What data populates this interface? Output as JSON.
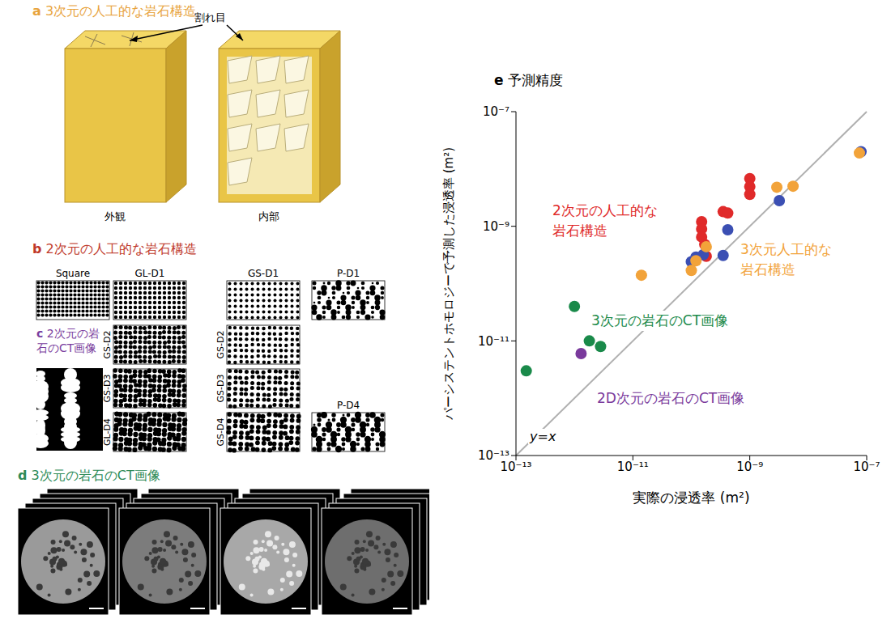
{
  "panels": {
    "a": {
      "letter": "a",
      "title": "3次元の人工的な岩石構造",
      "annotation": "割れ目",
      "labels": [
        "外観",
        "内部"
      ]
    },
    "b": {
      "letter": "b",
      "title": "2次元の人工的な岩石構造",
      "images": [
        "Square",
        "GL-D1",
        "GS-D1",
        "P-D1",
        "GS-D2",
        "GS-D3",
        "GL-D4",
        "GS-D2",
        "GS-D3",
        "GS-D4",
        "P-D4"
      ]
    },
    "c": {
      "letter": "c",
      "title": "2次元の岩石のCT画像"
    },
    "d": {
      "letter": "d",
      "title": "3次元の岩石のCT画像"
    }
  },
  "chart_data": {
    "letter": "e",
    "type": "scatter",
    "title": "予測精度",
    "x_label": "実際の浸透率 (m²)",
    "y_label": "パーシステントホモロジーで予測した浸透率 (m²)",
    "log": true,
    "grid": false,
    "xlim": [
      1e-13,
      1e-07
    ],
    "ylim": [
      1e-13,
      1e-07
    ],
    "xticks": [
      {
        "value": 1e-13,
        "label": "10⁻¹³"
      },
      {
        "value": 1e-11,
        "label": "10⁻¹¹"
      },
      {
        "value": 1e-09,
        "label": "10⁻⁹"
      },
      {
        "value": 1e-07,
        "label": "10⁻⁷"
      }
    ],
    "yticks": [
      {
        "value": 1e-13,
        "label": "10⁻¹³"
      },
      {
        "value": 1e-11,
        "label": "10⁻¹¹"
      },
      {
        "value": 1e-09,
        "label": "10⁻⁹"
      },
      {
        "value": 1e-07,
        "label": "10⁻⁷"
      }
    ],
    "annotations": [
      "y=x"
    ],
    "series": [
      {
        "name": "2次元の人工的な岩石構造",
        "color": "#e02a2a",
        "x": [
          1.5e-10,
          1.5e-10,
          1.5e-10,
          1.7e-10,
          1.8e-10,
          3.5e-10,
          4.2e-10,
          1e-09,
          1e-09,
          1e-09
        ],
        "y": [
          1.2e-09,
          9e-10,
          6.5e-10,
          4.8e-10,
          3e-10,
          1.8e-09,
          1.7e-09,
          6.8e-09,
          4.9e-09,
          3.6e-09
        ]
      },
      {
        "color": "#3b4fb3",
        "x": [
          1e-10,
          1.2e-10,
          1.6e-10,
          3.5e-10,
          4.2e-10,
          3.2e-09,
          8e-08
        ],
        "y": [
          2.4e-10,
          2.9e-10,
          3.2e-10,
          3.1e-10,
          8.7e-10,
          2.8e-09,
          2e-08
        ]
      },
      {
        "name": "3次元人工的な岩石構造",
        "color": "#f2a33a",
        "x": [
          1.4e-11,
          1e-10,
          1.2e-10,
          1.8e-10,
          2.9e-09,
          5.5e-09,
          7.5e-08
        ],
        "y": [
          1.4e-10,
          1.7e-10,
          2.5e-10,
          4.4e-10,
          4.8e-09,
          5e-09,
          1.9e-08
        ]
      },
      {
        "name": "3次元の岩石のCT画像",
        "color": "#1a8a4a",
        "x": [
          1.5e-13,
          1e-12,
          1.8e-12,
          2.8e-12
        ],
        "y": [
          3e-12,
          4e-11,
          1e-11,
          8e-12
        ]
      },
      {
        "name": "2D次元の岩石のCT画像",
        "color": "#7a3a9c",
        "x": [
          1.3e-12
        ],
        "y": [
          6e-12
        ]
      }
    ]
  }
}
